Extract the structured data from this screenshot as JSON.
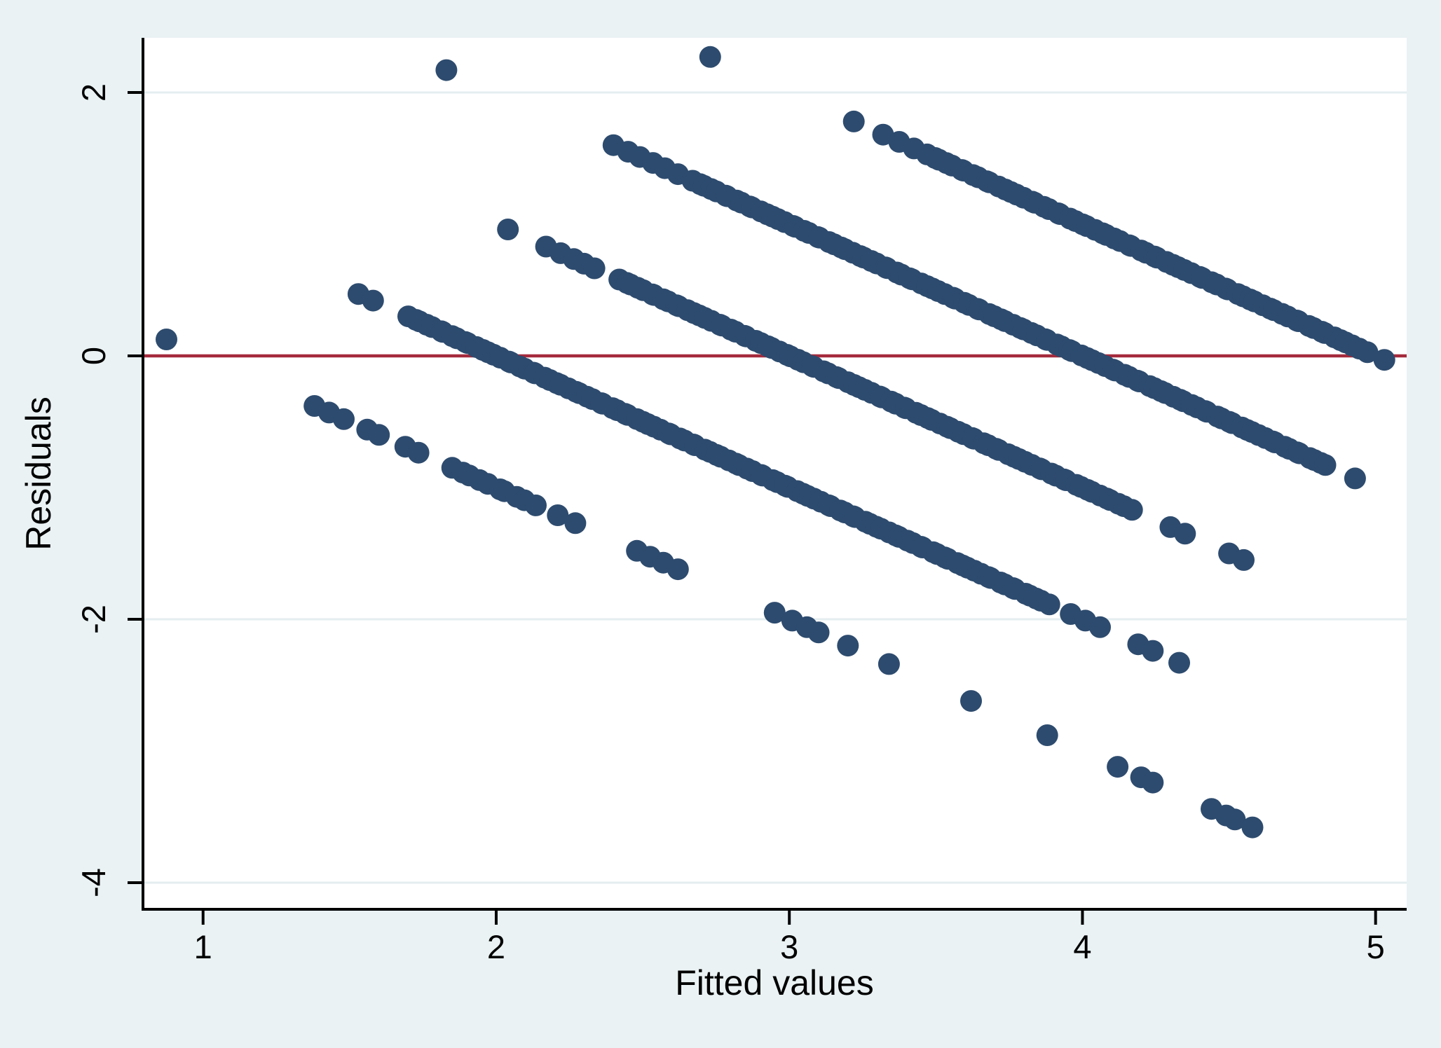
{
  "page": {
    "description": "Stata-style residual-versus-fitted diagnostic scatter plot"
  },
  "chart_data": {
    "type": "scatter",
    "title": "",
    "xlabel": "Fitted values",
    "ylabel": "Residuals",
    "x_ticks": [
      1,
      2,
      3,
      4,
      5
    ],
    "y_ticks": [
      2,
      0,
      -2,
      -4
    ],
    "x_range": [
      0.795,
      5.106
    ],
    "y_range": [
      -4.202,
      2.415
    ],
    "grid": {
      "horizontal": true,
      "vertical": false,
      "color": "#e4eef0"
    },
    "ref_line": {
      "y": 0,
      "color": "#a52a3c"
    },
    "marker": {
      "shape": "circle",
      "color": "#2d4b6e",
      "radius_px": 15.5
    },
    "colors": {
      "page_background": "#eaf2f3",
      "plot_background": "#ffffff",
      "axis": "#000000"
    },
    "legend": "none",
    "pattern_note": "Outcome is discrete (levels 1-5); residual = level - fitted, so points lie on parallel slope -1 bands. Each series below is one band: y = level - x.",
    "series": [
      {
        "name": "level-1 band",
        "level": 1,
        "x_isolated": [
          0.875,
          1.38,
          1.43,
          1.48,
          1.56,
          1.6,
          1.69,
          1.735,
          2.21,
          2.27,
          2.48,
          2.525,
          2.57,
          2.62,
          2.95,
          3.01,
          3.06,
          3.1,
          3.2,
          3.34,
          3.62,
          3.88,
          4.12,
          4.2,
          4.24,
          4.44,
          4.49,
          4.52,
          4.58
        ],
        "x_runs": [
          {
            "from": 1.85,
            "to": 2.13,
            "step": 0.031
          }
        ]
      },
      {
        "name": "level-2 band",
        "level": 2,
        "x_isolated": [
          1.53,
          1.58,
          3.96,
          4.01,
          4.06,
          4.19,
          4.24,
          4.33
        ],
        "x_runs": [
          {
            "from": 1.7,
            "to": 3.9,
            "step": 0.021
          }
        ]
      },
      {
        "name": "level-3 band",
        "level": 3,
        "x_isolated": [
          2.04,
          2.17,
          2.22,
          2.265,
          2.3,
          2.335,
          4.3,
          4.35,
          4.5,
          4.55
        ],
        "x_runs": [
          {
            "from": 2.42,
            "to": 4.18,
            "step": 0.021
          }
        ]
      },
      {
        "name": "level-4 band",
        "level": 4,
        "x_isolated": [
          1.83,
          2.4,
          2.45,
          2.49,
          2.535,
          2.575,
          2.62,
          4.93
        ],
        "x_runs": [
          {
            "from": 2.67,
            "to": 4.85,
            "step": 0.021
          }
        ]
      },
      {
        "name": "level-5 band",
        "level": 5,
        "x_isolated": [
          2.73,
          3.22,
          3.32,
          3.375,
          3.425,
          5.03
        ],
        "x_runs": [
          {
            "from": 3.47,
            "to": 4.97,
            "step": 0.022
          }
        ]
      }
    ]
  }
}
